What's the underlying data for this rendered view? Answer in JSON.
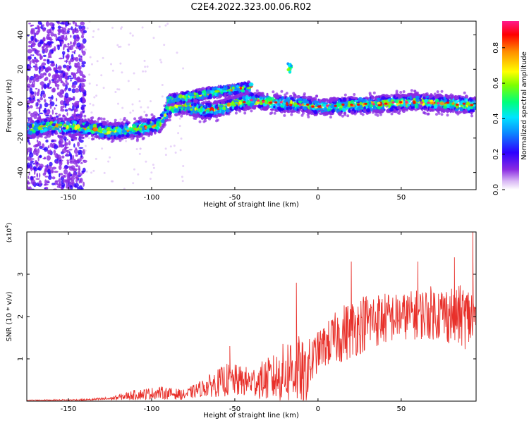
{
  "title": "C2E4.2022.323.00.06.R02",
  "colors": {
    "snr_line": "#e8302a",
    "axis": "#000000"
  },
  "chart_data": [
    {
      "type": "heatmap",
      "xlabel": "Height of straight line (km)",
      "ylabel": "Frequency (Hz)",
      "xlim": [
        -175,
        95
      ],
      "ylim": [
        -50,
        48
      ],
      "xticks": [
        -150,
        -100,
        -50,
        0,
        50
      ],
      "yticks": [
        -40,
        -20,
        0,
        20,
        40
      ],
      "colorbar": {
        "label": "Normalized spectral amplitude",
        "range": [
          0.0,
          0.95
        ],
        "ticks": [
          "0.0",
          "0.2",
          "0.4",
          "0.6",
          "0.8"
        ],
        "tick_values": [
          0.0,
          0.2,
          0.4,
          0.6,
          0.8
        ]
      },
      "ridge": {
        "x": [
          -175,
          -160,
          -140,
          -125,
          -110,
          -95,
          -90,
          -80,
          -70,
          -60,
          -50,
          -40,
          -30,
          -20,
          -10,
          0,
          20,
          40,
          60,
          80,
          95
        ],
        "freq": [
          -15,
          -13,
          -14,
          -16,
          -15,
          -12,
          -3,
          -1,
          -4,
          -3,
          0,
          2,
          1,
          0,
          0,
          -2,
          -1,
          0,
          1,
          0,
          -1
        ]
      },
      "secondary_ridge": {
        "x": [
          -90,
          -60,
          -40
        ],
        "freq": [
          2,
          7,
          10
        ]
      },
      "noise_region_x": [
        -175,
        -140
      ],
      "spot": {
        "x": -17,
        "freq": 21
      }
    },
    {
      "type": "line",
      "xlabel": "Height of straight line (km)",
      "ylabel": "SNR (10 * v/v)",
      "y_multiplier": "(x10",
      "y_multiplier_exp": "4",
      "y_multiplier_close": ")",
      "xlim": [
        -175,
        95
      ],
      "ylim": [
        0,
        4.0
      ],
      "xticks": [
        -150,
        -100,
        -50,
        0,
        50
      ],
      "yticks": [
        1,
        2,
        3
      ],
      "envelope": {
        "x": [
          -175,
          -140,
          -125,
          -110,
          -95,
          -80,
          -70,
          -55,
          -40,
          -25,
          -15,
          -8,
          0,
          15,
          30,
          50,
          70,
          95
        ],
        "mean": [
          0.02,
          0.03,
          0.06,
          0.15,
          0.2,
          0.15,
          0.3,
          0.5,
          0.45,
          0.55,
          0.8,
          0.6,
          1.2,
          1.6,
          1.9,
          2.0,
          2.1,
          1.95
        ],
        "amp": [
          0.01,
          0.02,
          0.04,
          0.12,
          0.15,
          0.12,
          0.2,
          0.4,
          0.35,
          0.6,
          0.9,
          0.8,
          0.45,
          0.7,
          0.7,
          0.55,
          0.65,
          0.8
        ]
      },
      "peaks": [
        {
          "x": 93,
          "y": 4.0
        },
        {
          "x": 20,
          "y": 3.3
        },
        {
          "x": 60,
          "y": 3.3
        },
        {
          "x": 82,
          "y": 3.4
        },
        {
          "x": -13,
          "y": 2.8
        },
        {
          "x": -53,
          "y": 1.3
        }
      ]
    }
  ]
}
